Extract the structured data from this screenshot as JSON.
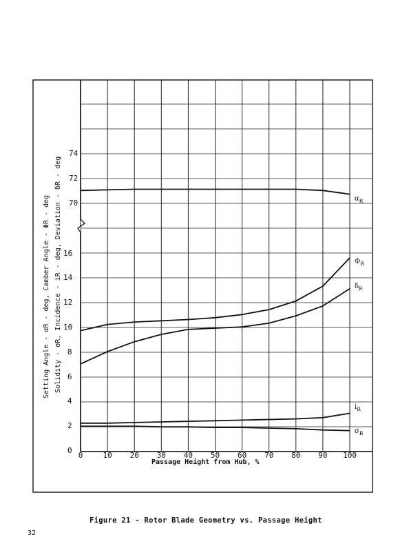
{
  "page": {
    "page_number": "32",
    "caption": "Figure 21  - Rotor Blade Geometry vs. Passage Height"
  },
  "axes": {
    "xlabel": "Passage Height from Hub, %",
    "ylabel_line1": "Setting Angle - αR - deg, Camber Angle - ΦR - deg",
    "ylabel_line2": "Solidity - σR, Incidence - iR - deg, Deviation - δR - deg",
    "x_ticks": [
      "0",
      "10",
      "20",
      "30",
      "40",
      "50",
      "60",
      "70",
      "80",
      "90",
      "100"
    ],
    "y_ticks_lower": [
      "0",
      "2",
      "4",
      "6",
      "8",
      "10",
      "12",
      "14",
      "16"
    ],
    "y_ticks_upper": [
      "70",
      "72",
      "74"
    ],
    "axis_break": "zigzag between 16 and 70"
  },
  "curve_labels": {
    "alpha": {
      "sym": "α",
      "sub": "R"
    },
    "phi": {
      "sym": "Φ",
      "sub": "R"
    },
    "delta": {
      "sym": "δ",
      "sub": "R"
    },
    "incidence": {
      "sym": "i",
      "sub": "R"
    },
    "sigma": {
      "sym": "σ",
      "sub": "R"
    }
  },
  "chart_data": {
    "type": "line",
    "title": "Rotor Blade Geometry vs. Passage Height",
    "xlabel": "Passage Height from Hub, %",
    "ylabel": "Setting Angle αR (deg), Camber Angle ΦR (deg), Solidity σR, Incidence iR (deg), Deviation δR (deg)",
    "x": [
      0,
      10,
      20,
      30,
      40,
      50,
      60,
      70,
      80,
      90,
      100
    ],
    "xlim": [
      0,
      100
    ],
    "ylim_lower": [
      0,
      16
    ],
    "ylim_upper": [
      70,
      74
    ],
    "grid": true,
    "legend_position": "inline labels at right end of curves",
    "series": [
      {
        "name": "αR (Setting Angle, deg)",
        "values": [
          71.1,
          71.15,
          71.2,
          71.2,
          71.2,
          71.2,
          71.2,
          71.2,
          71.2,
          71.1,
          70.8
        ]
      },
      {
        "name": "ΦR (Camber Angle, deg)",
        "values": [
          9.8,
          10.3,
          10.5,
          10.6,
          10.7,
          10.85,
          11.1,
          11.5,
          12.2,
          13.4,
          15.7
        ]
      },
      {
        "name": "δR (Deviation, deg)",
        "values": [
          7.1,
          8.1,
          8.9,
          9.5,
          9.9,
          10.0,
          10.1,
          10.4,
          11.0,
          11.8,
          13.2
        ]
      },
      {
        "name": "iR (Incidence, deg)",
        "values": [
          2.3,
          2.3,
          2.35,
          2.4,
          2.45,
          2.5,
          2.55,
          2.6,
          2.65,
          2.75,
          3.1
        ]
      },
      {
        "name": "σR (Solidity)",
        "values": [
          2.05,
          2.05,
          2.05,
          2.0,
          2.0,
          1.95,
          1.95,
          1.9,
          1.85,
          1.75,
          1.7
        ]
      }
    ]
  }
}
